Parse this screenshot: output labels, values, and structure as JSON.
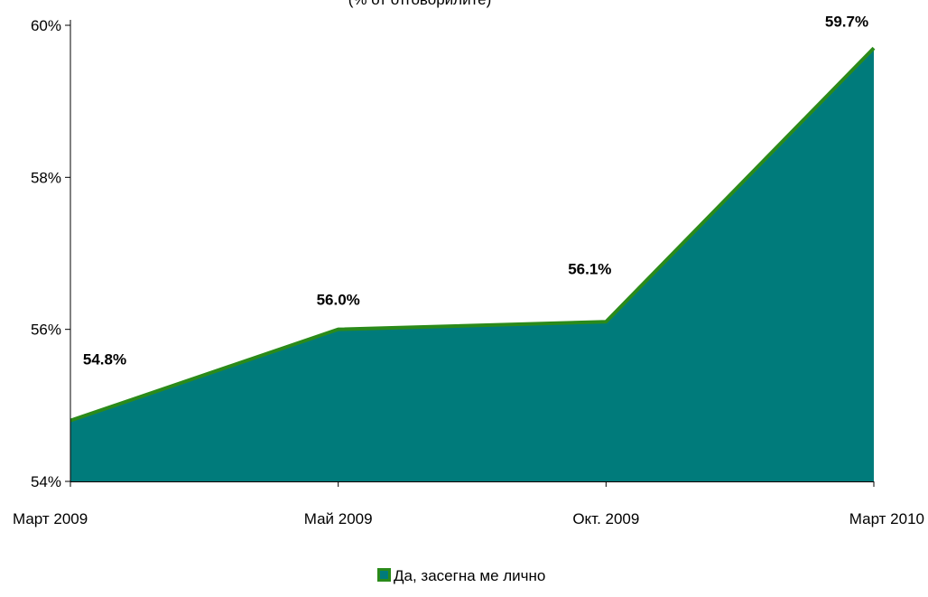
{
  "chart_data": {
    "type": "area",
    "subtitle": "(% от отговорилите)",
    "categories": [
      "Март 2009",
      "Май 2009",
      "Окт. 2009",
      "Март 2010"
    ],
    "series": [
      {
        "name": "Да, засегна ме лично",
        "values": [
          54.8,
          56.0,
          56.1,
          59.7
        ],
        "data_labels": [
          "54.8%",
          "56.0%",
          "56.1%",
          "59.7%"
        ],
        "fill_color": "#007b7b",
        "line_color": "#2a8a1a"
      }
    ],
    "ylim": [
      54,
      60
    ],
    "y_ticks": [
      54,
      56,
      58,
      60
    ],
    "y_tick_labels": [
      "54%",
      "56%",
      "58%",
      "60%"
    ],
    "grid": false,
    "legend_position": "bottom-center"
  }
}
